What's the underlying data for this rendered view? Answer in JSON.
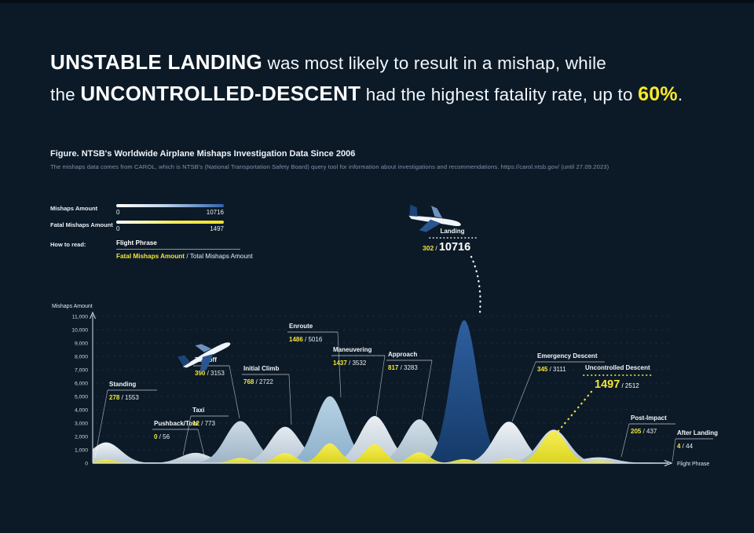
{
  "headline": {
    "line1_strong": "UNSTABLE LANDING",
    "line1_rest": " was most likely to result in a mishap, while",
    "line2_pre": "the ",
    "line2_strong": "UNCONTROLLED-DESCENT",
    "line2_mid": " had the highest fatality rate, up to ",
    "line2_highlight": "60%",
    "line2_end": "."
  },
  "figure": {
    "title": "Figure. NTSB's Worldwide Airplane Mishaps Investigation Data Since 2006",
    "subtitle": "The mishaps data comes from CAROL, which is NTSB's (National Transportation Safety Board) query tool for information about investigations and recommendations. https://carol.ntsb.gov/ (until 27.09.2023)"
  },
  "legend": {
    "mishaps_label": "Mishaps Amount",
    "mishaps_min": "0",
    "mishaps_max": "10716",
    "fatal_label": "Fatal Mishaps Amount",
    "fatal_min": "0",
    "fatal_max": "1497",
    "how_to_read_label": "How to read:",
    "how_flight_phrase": "Flight Phrase",
    "how_fatal": "Fatal Mishaps Amount",
    "how_sep": " / ",
    "how_total": "Total Mishaps Amount"
  },
  "chart_data": {
    "type": "area",
    "title": "NTSB worldwide airplane mishaps by flight phase since 2006",
    "ylabel": "Mishaps Amount",
    "xlabel": "Flight Phrase",
    "ylim": [
      0,
      11000
    ],
    "ytick_step": 1000,
    "yticks": [
      "0",
      "1,000",
      "2,000",
      "3,000",
      "4,000",
      "5,000",
      "6,000",
      "7,000",
      "8,000",
      "9,000",
      "10,000",
      "11,000"
    ],
    "grid": "dashed-horizontal",
    "legend_position": "top-left",
    "series_note": "each phase drawn as overlapping bell mound: total mishaps (blue/grey) with fatal mishaps (yellow) inside",
    "phases": [
      {
        "label": "Standing",
        "fatal": 278,
        "total": 1553
      },
      {
        "label": "Pushback/Tow",
        "fatal": 0,
        "total": 56
      },
      {
        "label": "Taxi",
        "fatal": 12,
        "total": 773
      },
      {
        "label": "Takeoff",
        "fatal": 390,
        "total": 3153
      },
      {
        "label": "Initial Climb",
        "fatal": 768,
        "total": 2722
      },
      {
        "label": "Enroute",
        "fatal": 1486,
        "total": 5016
      },
      {
        "label": "Maneuvering",
        "fatal": 1437,
        "total": 3532
      },
      {
        "label": "Approach",
        "fatal": 817,
        "total": 3283
      },
      {
        "label": "Landing",
        "fatal": 302,
        "total": 10716,
        "emphasis": "total"
      },
      {
        "label": "Emergency Descent",
        "fatal": 345,
        "total": 3111
      },
      {
        "label": "Uncontrolled Descent",
        "fatal": 1497,
        "total": 2512,
        "emphasis": "fatal"
      },
      {
        "label": "Post-Impact",
        "fatal": 205,
        "total": 437
      },
      {
        "label": "After Landing",
        "fatal": 4,
        "total": 44
      }
    ]
  },
  "colors": {
    "background": "#0c1a28",
    "accent_yellow": "#f2e635",
    "headline_yellow": "#f8e82c",
    "landing_blue_top": "#2e5f9e",
    "landing_blue_bottom": "#153a69",
    "axis": "#d7dee6",
    "muted_text": "#7e93a8"
  }
}
